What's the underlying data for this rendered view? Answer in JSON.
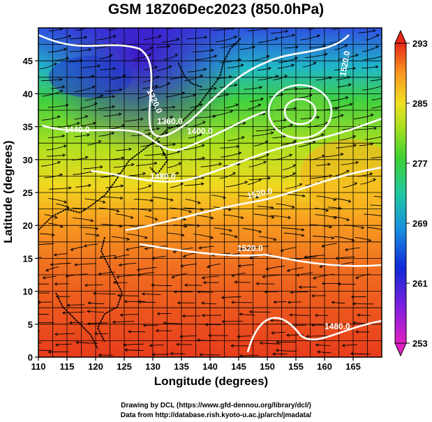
{
  "title": "GSM 18Z06Dec2023 (850.0hPa)",
  "xlabel": "Longitude (degrees)",
  "ylabel": "Latitude  (degrees)",
  "x_ticks": [
    "110",
    "115",
    "120",
    "125",
    "130",
    "135",
    "140",
    "145",
    "150",
    "155",
    "160",
    "165"
  ],
  "y_ticks": [
    "0",
    "5",
    "10",
    "15",
    "20",
    "25",
    "30",
    "35",
    "40",
    "45"
  ],
  "colorbar": {
    "ticks": [
      "293",
      "285",
      "277",
      "269",
      "261",
      "253"
    ]
  },
  "contour_labels": [
    "1320.0",
    "1360.0",
    "1440.0",
    "1400.0",
    "1480.0",
    "1520.0",
    "1520.0",
    "1480.0",
    "1520.0"
  ],
  "credits": {
    "line1": "Drawing by DCL (https://www.gfd-dennou.org/library/dcl/)",
    "line2": "Data from http://database.rish.kyoto-u.ac.jp/arch/jmadata/"
  },
  "chart_data": {
    "type": "heatmap",
    "title": "GSM 18Z06Dec2023 (850.0hPa)",
    "xlabel": "Longitude (degrees)",
    "ylabel": "Latitude  (degrees)",
    "xlim": [
      110,
      170
    ],
    "ylim": [
      0,
      50
    ],
    "colorbar_range": [
      253,
      293
    ],
    "colors": {
      "warm": "#e83c1c",
      "orange": "#f59a1a",
      "yellow": "#e8e020",
      "green": "#3cc83c",
      "cyan": "#2aa8d8",
      "blue": "#2038d0",
      "magenta": "#c040d0"
    }
  }
}
